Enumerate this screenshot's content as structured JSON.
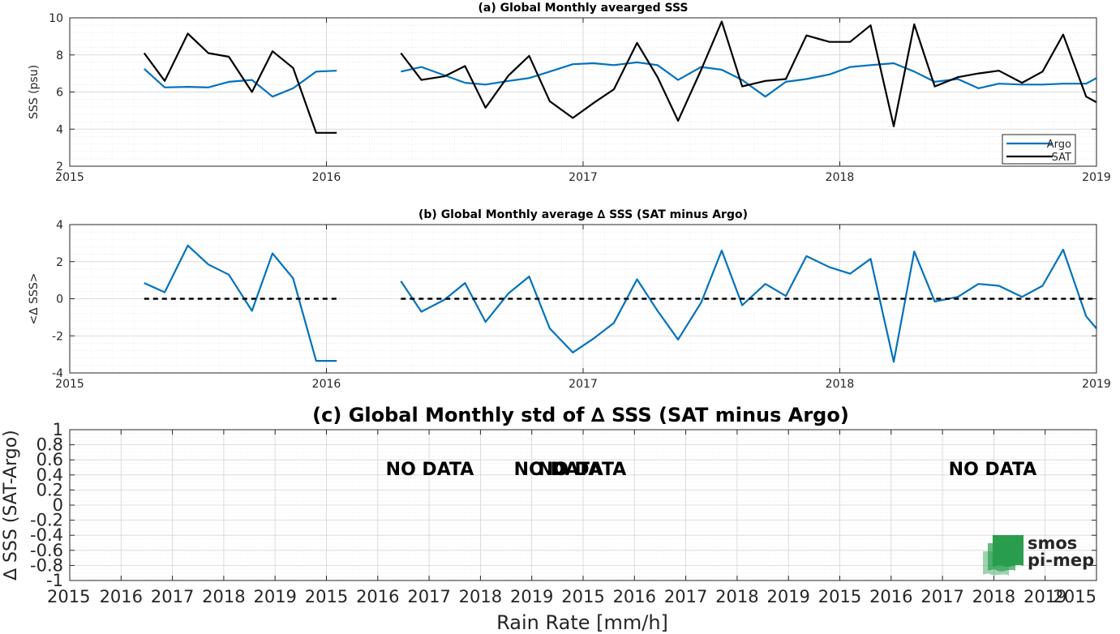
{
  "chart_data": [
    {
      "type": "line",
      "title": "(a) Global Monthly avearged SSS",
      "xlabel": "",
      "ylabel": "SSS (psu)",
      "xlim": [
        2015,
        2019
      ],
      "ylim": [
        2,
        10
      ],
      "xticks": [
        "2015",
        "2016",
        "2017",
        "2018",
        "2019"
      ],
      "yticks": [
        "2",
        "4",
        "6",
        "8",
        "10"
      ],
      "grid": true,
      "legend_position": "bottom-right",
      "series": [
        {
          "name": "Argo",
          "color": "#0072BD",
          "x": [
            2015.29,
            2015.37,
            2015.46,
            2015.54,
            2015.62,
            2015.71,
            2015.79,
            2015.87,
            2015.96,
            2016.04,
            null,
            2016.29,
            2016.37,
            2016.46,
            2016.54,
            2016.62,
            2016.71,
            2016.79,
            2016.87,
            2016.96,
            2017.04,
            2017.12,
            2017.21,
            2017.29,
            2017.37,
            2017.46,
            2017.54,
            2017.62,
            2017.71,
            2017.79,
            2017.87,
            2017.96,
            2018.04,
            2018.12,
            2018.21,
            2018.29,
            2018.37,
            2018.46,
            2018.54,
            2018.62,
            2018.71,
            2018.79,
            2018.87,
            2018.96,
            2019.0
          ],
          "y": [
            7.25,
            6.25,
            6.28,
            6.25,
            6.55,
            6.65,
            5.75,
            6.2,
            7.1,
            7.15,
            null,
            7.1,
            7.35,
            6.9,
            6.5,
            6.4,
            6.6,
            6.75,
            7.1,
            7.5,
            7.55,
            7.45,
            7.6,
            7.45,
            6.65,
            7.35,
            7.2,
            6.65,
            5.75,
            6.55,
            6.7,
            6.95,
            7.35,
            7.45,
            7.55,
            7.1,
            6.55,
            6.7,
            6.2,
            6.45,
            6.4,
            6.4,
            6.45,
            6.45,
            6.75
          ]
        },
        {
          "name": "SAT",
          "color": "#000000",
          "x": [
            2015.29,
            2015.37,
            2015.46,
            2015.54,
            2015.62,
            2015.71,
            2015.79,
            2015.87,
            2015.96,
            2016.04,
            null,
            2016.29,
            2016.37,
            2016.46,
            2016.54,
            2016.62,
            2016.71,
            2016.79,
            2016.87,
            2016.96,
            2017.04,
            2017.12,
            2017.21,
            2017.29,
            2017.37,
            2017.46,
            2017.54,
            2017.62,
            2017.71,
            2017.79,
            2017.87,
            2017.96,
            2018.04,
            2018.12,
            2018.21,
            2018.29,
            2018.37,
            2018.46,
            2018.54,
            2018.62,
            2018.71,
            2018.79,
            2018.87,
            2018.96,
            2019.0
          ],
          "y": [
            8.1,
            6.6,
            9.15,
            8.1,
            7.9,
            6.0,
            8.2,
            7.3,
            3.8,
            3.8,
            null,
            8.1,
            6.65,
            6.85,
            7.4,
            5.15,
            6.9,
            7.95,
            5.5,
            4.6,
            5.4,
            6.15,
            8.65,
            6.8,
            4.45,
            7.2,
            9.8,
            6.3,
            6.6,
            6.7,
            9.05,
            8.7,
            8.7,
            9.6,
            4.15,
            9.65,
            6.3,
            6.8,
            7.0,
            7.15,
            6.5,
            7.1,
            9.1,
            5.75,
            5.45
          ]
        }
      ]
    },
    {
      "type": "line",
      "title": "(b) Global Monthly average ∆ SSS (SAT minus Argo)",
      "xlabel": "",
      "ylabel": "<∆ SSS>",
      "xlim": [
        2015,
        2019
      ],
      "ylim": [
        -4,
        4
      ],
      "xticks": [
        "2015",
        "2016",
        "2017",
        "2018",
        "2019"
      ],
      "yticks": [
        "-4",
        "-2",
        "0",
        "2",
        "4"
      ],
      "grid": true,
      "series": [
        {
          "color": "#0072BD",
          "x": [
            2015.29,
            2015.37,
            2015.46,
            2015.54,
            2015.62,
            2015.71,
            2015.79,
            2015.87,
            2015.96,
            2016.04,
            null,
            2016.29,
            2016.37,
            2016.46,
            2016.54,
            2016.62,
            2016.71,
            2016.79,
            2016.87,
            2016.96,
            2017.04,
            2017.12,
            2017.21,
            2017.29,
            2017.37,
            2017.46,
            2017.54,
            2017.62,
            2017.71,
            2017.79,
            2017.87,
            2017.96,
            2018.04,
            2018.12,
            2018.21,
            2018.29,
            2018.37,
            2018.46,
            2018.54,
            2018.62,
            2018.71,
            2018.79,
            2018.87,
            2018.96,
            2019.0
          ],
          "y": [
            0.85,
            0.35,
            2.87,
            1.85,
            1.3,
            -0.65,
            2.45,
            1.1,
            -3.35,
            -3.35,
            null,
            0.95,
            -0.7,
            -0.05,
            0.85,
            -1.25,
            0.3,
            1.2,
            -1.6,
            -2.9,
            -2.15,
            -1.3,
            1.05,
            -0.65,
            -2.2,
            -0.2,
            2.6,
            -0.35,
            0.8,
            0.15,
            2.3,
            1.7,
            1.35,
            2.15,
            -3.4,
            2.55,
            -0.15,
            0.1,
            0.8,
            0.7,
            0.1,
            0.7,
            2.65,
            -0.95,
            -1.6
          ]
        },
        {
          "color": "#000000",
          "dashed": true,
          "x": [
            2015.29,
            2016.04,
            null,
            2016.29,
            2019.0
          ],
          "y": [
            0,
            0,
            null,
            0,
            0
          ]
        }
      ]
    },
    {
      "type": "line",
      "title": "(c) Global Monthly std of ∆ SSS (SAT minus Argo)",
      "xlabel": "Rain Rate [mm/h]",
      "ylabel": "∆ SSS (SAT-Argo)",
      "ylim": [
        -1,
        1
      ],
      "xticks": [
        "2015",
        "2016",
        "2017",
        "2018",
        "2019",
        "2015",
        "2016",
        "2017",
        "2018",
        "2019",
        "2015",
        "2016",
        "2017",
        "2018",
        "2019",
        "2015",
        "2016",
        "2017",
        "2018",
        "2019",
        "2015"
      ],
      "yticks": [
        "1",
        "0.8",
        "0.6",
        "0.4",
        "0.2",
        "0",
        "-0.2",
        "-0.4",
        "-0.6",
        "-0.8",
        "-1"
      ],
      "grid": true,
      "annotations": [
        "NO DATA",
        "NO DATA",
        "NO DATA",
        "NO DATA"
      ],
      "series": []
    }
  ],
  "logo": {
    "line1": "smos",
    "line2": "pi-mep",
    "color": "#2a9d4f"
  }
}
